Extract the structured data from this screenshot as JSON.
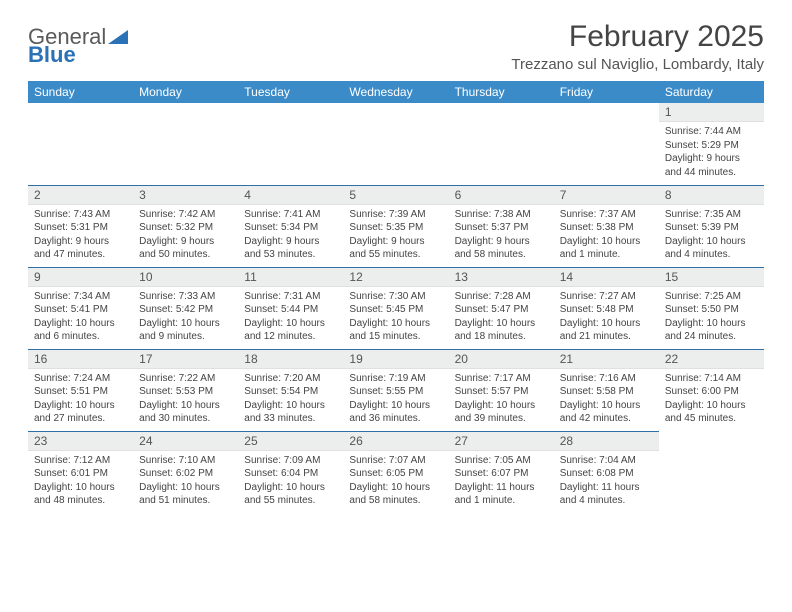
{
  "brand": {
    "part1": "General",
    "part2": "Blue"
  },
  "title": "February 2025",
  "location": "Trezzano sul Naviglio, Lombardy, Italy",
  "colors": {
    "header_bg": "#3b8bc8",
    "header_text": "#ffffff",
    "row_divider": "#2f6fa5",
    "daynum_bg": "#eceded",
    "body_text": "#444444",
    "brand_gray": "#5a5a5a",
    "brand_blue": "#2a72b5"
  },
  "weekdays": [
    "Sunday",
    "Monday",
    "Tuesday",
    "Wednesday",
    "Thursday",
    "Friday",
    "Saturday"
  ],
  "weeks": [
    [
      {
        "n": "",
        "sr": "",
        "ss": "",
        "dl": ""
      },
      {
        "n": "",
        "sr": "",
        "ss": "",
        "dl": ""
      },
      {
        "n": "",
        "sr": "",
        "ss": "",
        "dl": ""
      },
      {
        "n": "",
        "sr": "",
        "ss": "",
        "dl": ""
      },
      {
        "n": "",
        "sr": "",
        "ss": "",
        "dl": ""
      },
      {
        "n": "",
        "sr": "",
        "ss": "",
        "dl": ""
      },
      {
        "n": "1",
        "sr": "Sunrise: 7:44 AM",
        "ss": "Sunset: 5:29 PM",
        "dl": "Daylight: 9 hours and 44 minutes."
      }
    ],
    [
      {
        "n": "2",
        "sr": "Sunrise: 7:43 AM",
        "ss": "Sunset: 5:31 PM",
        "dl": "Daylight: 9 hours and 47 minutes."
      },
      {
        "n": "3",
        "sr": "Sunrise: 7:42 AM",
        "ss": "Sunset: 5:32 PM",
        "dl": "Daylight: 9 hours and 50 minutes."
      },
      {
        "n": "4",
        "sr": "Sunrise: 7:41 AM",
        "ss": "Sunset: 5:34 PM",
        "dl": "Daylight: 9 hours and 53 minutes."
      },
      {
        "n": "5",
        "sr": "Sunrise: 7:39 AM",
        "ss": "Sunset: 5:35 PM",
        "dl": "Daylight: 9 hours and 55 minutes."
      },
      {
        "n": "6",
        "sr": "Sunrise: 7:38 AM",
        "ss": "Sunset: 5:37 PM",
        "dl": "Daylight: 9 hours and 58 minutes."
      },
      {
        "n": "7",
        "sr": "Sunrise: 7:37 AM",
        "ss": "Sunset: 5:38 PM",
        "dl": "Daylight: 10 hours and 1 minute."
      },
      {
        "n": "8",
        "sr": "Sunrise: 7:35 AM",
        "ss": "Sunset: 5:39 PM",
        "dl": "Daylight: 10 hours and 4 minutes."
      }
    ],
    [
      {
        "n": "9",
        "sr": "Sunrise: 7:34 AM",
        "ss": "Sunset: 5:41 PM",
        "dl": "Daylight: 10 hours and 6 minutes."
      },
      {
        "n": "10",
        "sr": "Sunrise: 7:33 AM",
        "ss": "Sunset: 5:42 PM",
        "dl": "Daylight: 10 hours and 9 minutes."
      },
      {
        "n": "11",
        "sr": "Sunrise: 7:31 AM",
        "ss": "Sunset: 5:44 PM",
        "dl": "Daylight: 10 hours and 12 minutes."
      },
      {
        "n": "12",
        "sr": "Sunrise: 7:30 AM",
        "ss": "Sunset: 5:45 PM",
        "dl": "Daylight: 10 hours and 15 minutes."
      },
      {
        "n": "13",
        "sr": "Sunrise: 7:28 AM",
        "ss": "Sunset: 5:47 PM",
        "dl": "Daylight: 10 hours and 18 minutes."
      },
      {
        "n": "14",
        "sr": "Sunrise: 7:27 AM",
        "ss": "Sunset: 5:48 PM",
        "dl": "Daylight: 10 hours and 21 minutes."
      },
      {
        "n": "15",
        "sr": "Sunrise: 7:25 AM",
        "ss": "Sunset: 5:50 PM",
        "dl": "Daylight: 10 hours and 24 minutes."
      }
    ],
    [
      {
        "n": "16",
        "sr": "Sunrise: 7:24 AM",
        "ss": "Sunset: 5:51 PM",
        "dl": "Daylight: 10 hours and 27 minutes."
      },
      {
        "n": "17",
        "sr": "Sunrise: 7:22 AM",
        "ss": "Sunset: 5:53 PM",
        "dl": "Daylight: 10 hours and 30 minutes."
      },
      {
        "n": "18",
        "sr": "Sunrise: 7:20 AM",
        "ss": "Sunset: 5:54 PM",
        "dl": "Daylight: 10 hours and 33 minutes."
      },
      {
        "n": "19",
        "sr": "Sunrise: 7:19 AM",
        "ss": "Sunset: 5:55 PM",
        "dl": "Daylight: 10 hours and 36 minutes."
      },
      {
        "n": "20",
        "sr": "Sunrise: 7:17 AM",
        "ss": "Sunset: 5:57 PM",
        "dl": "Daylight: 10 hours and 39 minutes."
      },
      {
        "n": "21",
        "sr": "Sunrise: 7:16 AM",
        "ss": "Sunset: 5:58 PM",
        "dl": "Daylight: 10 hours and 42 minutes."
      },
      {
        "n": "22",
        "sr": "Sunrise: 7:14 AM",
        "ss": "Sunset: 6:00 PM",
        "dl": "Daylight: 10 hours and 45 minutes."
      }
    ],
    [
      {
        "n": "23",
        "sr": "Sunrise: 7:12 AM",
        "ss": "Sunset: 6:01 PM",
        "dl": "Daylight: 10 hours and 48 minutes."
      },
      {
        "n": "24",
        "sr": "Sunrise: 7:10 AM",
        "ss": "Sunset: 6:02 PM",
        "dl": "Daylight: 10 hours and 51 minutes."
      },
      {
        "n": "25",
        "sr": "Sunrise: 7:09 AM",
        "ss": "Sunset: 6:04 PM",
        "dl": "Daylight: 10 hours and 55 minutes."
      },
      {
        "n": "26",
        "sr": "Sunrise: 7:07 AM",
        "ss": "Sunset: 6:05 PM",
        "dl": "Daylight: 10 hours and 58 minutes."
      },
      {
        "n": "27",
        "sr": "Sunrise: 7:05 AM",
        "ss": "Sunset: 6:07 PM",
        "dl": "Daylight: 11 hours and 1 minute."
      },
      {
        "n": "28",
        "sr": "Sunrise: 7:04 AM",
        "ss": "Sunset: 6:08 PM",
        "dl": "Daylight: 11 hours and 4 minutes."
      },
      {
        "n": "",
        "sr": "",
        "ss": "",
        "dl": ""
      }
    ]
  ]
}
